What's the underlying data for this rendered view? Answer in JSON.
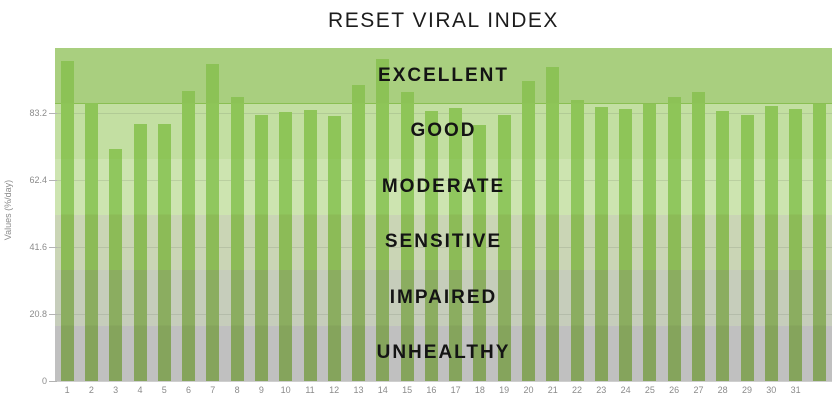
{
  "title": "RESET VIRAL INDEX",
  "colors": {
    "background": "#ffffff",
    "title_text": "#1c1c1c",
    "zone_label_text": "#141414",
    "axis_text": "#8b8b8b",
    "axis_line": "#cfcfcf",
    "gridline": "rgba(90,100,80,0.16)",
    "zone_divider": "#8abf53"
  },
  "y_axis": {
    "title": "Values (%/day)",
    "max": 103.5,
    "ticks": [
      {
        "label": "83.2",
        "value": 83.2
      },
      {
        "label": "62.4",
        "value": 62.4
      },
      {
        "label": "41.6",
        "value": 41.6
      },
      {
        "label": "20.8",
        "value": 20.8
      },
      {
        "label": "0",
        "value": 0
      }
    ]
  },
  "zones": [
    {
      "label": "EXCELLENT",
      "min": 86.25,
      "max": 103.5,
      "band_color": "#a9cf7f",
      "bar_color": "#8cc256",
      "divider_below": true
    },
    {
      "label": "GOOD",
      "min": 69.0,
      "max": 86.25,
      "band_color": "#c3dfa2",
      "bar_color": "#8ec558",
      "divider_below": false
    },
    {
      "label": "MODERATE",
      "min": 51.75,
      "max": 69.0,
      "band_color": "#cde4b0",
      "bar_color": "#90c75e",
      "divider_below": false
    },
    {
      "label": "SENSITIVE",
      "min": 34.5,
      "max": 51.75,
      "band_color": "#cad5b5",
      "bar_color": "#8cbb57",
      "divider_below": false
    },
    {
      "label": "IMPAIRED",
      "min": 17.25,
      "max": 34.5,
      "band_color": "#c6cdbb",
      "bar_color": "#8bad60",
      "divider_below": false
    },
    {
      "label": "UNHEALTHY",
      "min": 0,
      "max": 17.25,
      "band_color": "#c0c0c0",
      "bar_color": "#85a45c",
      "divider_below": false
    }
  ],
  "chart_data": {
    "type": "bar",
    "title": "RESET VIRAL INDEX",
    "xlabel": "",
    "ylabel": "Values (%/day)",
    "ylim": [
      0,
      103.5
    ],
    "grid": true,
    "legend": false,
    "bands": [
      "EXCELLENT",
      "GOOD",
      "MODERATE",
      "SENSITIVE",
      "IMPAIRED",
      "UNHEALTHY"
    ],
    "categories": [
      "1",
      "2",
      "3",
      "4",
      "5",
      "6",
      "7",
      "8",
      "9",
      "10",
      "11",
      "12",
      "13",
      "14",
      "15",
      "16",
      "17",
      "18",
      "19",
      "20",
      "21",
      "22",
      "23",
      "24",
      "25",
      "26",
      "27",
      "28",
      "29",
      "30",
      "31",
      ""
    ],
    "values": [
      99.5,
      86.5,
      72.0,
      80.0,
      80.0,
      90.3,
      98.5,
      88.2,
      82.8,
      83.6,
      84.1,
      82.5,
      92.0,
      100.0,
      89.8,
      84.0,
      85.0,
      79.5,
      82.6,
      93.4,
      97.5,
      87.4,
      85.1,
      84.6,
      86.2,
      88.2,
      89.8,
      83.9,
      82.8,
      85.4,
      84.6,
      86.0
    ]
  }
}
